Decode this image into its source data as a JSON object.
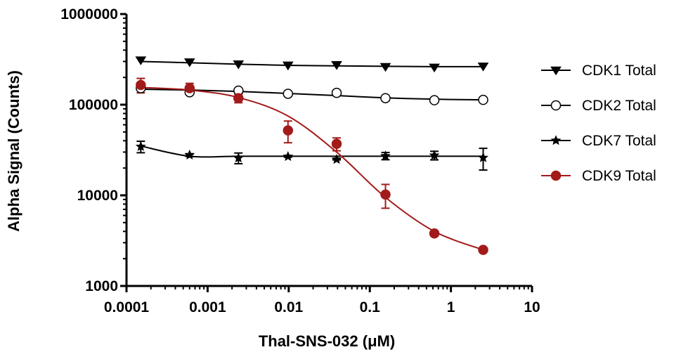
{
  "chart_data": {
    "type": "scatter",
    "xlabel": "Thal-SNS-032 (μM)",
    "ylabel": "Alpha Signal (Counts)",
    "x_scale": "log",
    "y_scale": "log",
    "xlim": [
      0.0001,
      10
    ],
    "ylim": [
      1000,
      1000000
    ],
    "x_ticks": [
      "0.0001",
      "0.001",
      "0.01",
      "0.1",
      "1",
      "10"
    ],
    "y_ticks": [
      "1000",
      "10000",
      "100000",
      "1000000"
    ],
    "legend_position": "right",
    "x": [
      0.00015,
      0.0006,
      0.0024,
      0.0098,
      0.039,
      0.156,
      0.625,
      2.5
    ],
    "series": [
      {
        "name": "CDK1 Total",
        "marker": "triangle-down",
        "filled": true,
        "color": "#000000",
        "values": [
          310000,
          295000,
          280000,
          272000,
          275000,
          262000,
          258000,
          265000
        ],
        "error": [
          0,
          0,
          0,
          0,
          0,
          0,
          0,
          0
        ],
        "fit": [
          300000,
          290000,
          280000,
          272000,
          268000,
          265000,
          263000,
          263000
        ]
      },
      {
        "name": "CDK2 Total",
        "marker": "circle",
        "filled": false,
        "color": "#000000",
        "values": [
          152000,
          137000,
          143000,
          132000,
          135000,
          118000,
          112000,
          113000
        ],
        "error": [
          0,
          0,
          0,
          0,
          0,
          0,
          0,
          0
        ],
        "fit": [
          148000,
          145000,
          140000,
          133000,
          126000,
          119000,
          115000,
          113000
        ]
      },
      {
        "name": "CDK7 Total",
        "marker": "star",
        "filled": true,
        "color": "#000000",
        "values": [
          34500,
          27800,
          25800,
          26800,
          24900,
          27200,
          27600,
          26000
        ],
        "error": [
          5000,
          1000,
          3500,
          500,
          300,
          2500,
          3000,
          7000
        ],
        "fit": [
          35000,
          27000,
          27000,
          27000,
          27000,
          27000,
          27000,
          27000
        ]
      },
      {
        "name": "CDK9 Total",
        "marker": "circle",
        "filled": true,
        "color": "#a31a1a",
        "values": [
          165000,
          152000,
          118000,
          52000,
          37000,
          10200,
          3800,
          2500
        ],
        "error": [
          30000,
          20000,
          13000,
          14000,
          6000,
          3000,
          200,
          100
        ],
        "fit": [
          155000,
          145000,
          120000,
          75000,
          30000,
          9500,
          4000,
          2500
        ]
      }
    ]
  }
}
